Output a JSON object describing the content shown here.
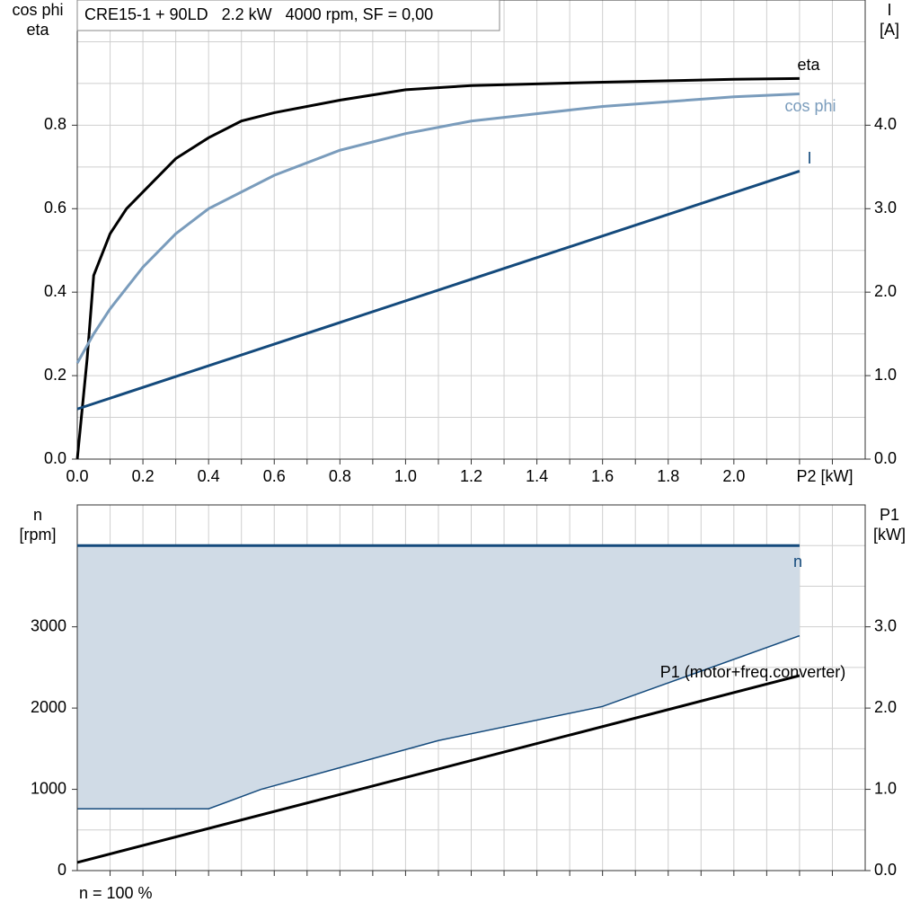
{
  "chart_data": [
    {
      "type": "line",
      "title": "CRE15-1 + 90LD   2.2 kW   4000 rpm, SF = 0,00",
      "ylabel": [
        "cos phi",
        "eta"
      ],
      "y2label": [
        "I",
        "[A]"
      ],
      "xlabel": "P2 [kW]",
      "xlim": [
        0,
        2.4
      ],
      "ylim": [
        0,
        1.1
      ],
      "y2lim": [
        0,
        5.5
      ],
      "xticks": [
        {
          "value": 0,
          "label": "0.0"
        },
        0.2,
        0.4,
        0.6,
        0.8,
        {
          "value": 1,
          "label": "1.0"
        },
        1.2,
        1.4,
        1.6,
        1.8,
        {
          "value": 2,
          "label": "2.0"
        }
      ],
      "yticks": [
        {
          "value": 0,
          "label": "0.0"
        },
        0.2,
        0.4,
        0.6,
        0.8
      ],
      "y2ticks": [
        {
          "value": 0,
          "label": "0.0"
        },
        {
          "value": 1,
          "label": "1.0"
        },
        {
          "value": 2,
          "label": "2.0"
        },
        {
          "value": 3,
          "label": "3.0"
        },
        {
          "value": 4,
          "label": "4.0"
        }
      ],
      "xgrid": [
        0.1,
        0.2,
        0.3,
        0.4,
        0.5,
        0.6,
        0.7,
        0.8,
        0.9,
        1.0,
        1.1,
        1.2,
        1.3,
        1.4,
        1.5,
        1.6,
        1.7,
        1.8,
        1.9,
        2.0,
        2.1,
        2.2,
        2.3
      ],
      "ygrid": [
        0.1,
        0.2,
        0.3,
        0.4,
        0.5,
        0.6,
        0.7,
        0.8,
        0.9,
        1.0
      ],
      "grid": true,
      "series": [
        {
          "name": "eta",
          "color": "#000000",
          "x": [
            0,
            0.03,
            0.05,
            0.1,
            0.15,
            0.2,
            0.3,
            0.4,
            0.5,
            0.6,
            0.8,
            1.0,
            1.2,
            1.6,
            2.0,
            2.2
          ],
          "values": [
            0,
            0.24,
            0.44,
            0.54,
            0.6,
            0.64,
            0.72,
            0.77,
            0.81,
            0.83,
            0.86,
            0.885,
            0.895,
            0.903,
            0.91,
            0.912
          ]
        },
        {
          "name": "cos phi",
          "color": "#7a9cbc",
          "x": [
            0,
            0.05,
            0.1,
            0.2,
            0.3,
            0.4,
            0.6,
            0.8,
            1.0,
            1.2,
            1.6,
            2.0,
            2.2
          ],
          "values": [
            0.23,
            0.3,
            0.36,
            0.46,
            0.54,
            0.6,
            0.68,
            0.74,
            0.78,
            0.81,
            0.845,
            0.868,
            0.875
          ]
        },
        {
          "name": "I",
          "color": "#144a7c",
          "axis": "y2",
          "x": [
            0,
            2.2
          ],
          "values": [
            0.6,
            3.45
          ]
        }
      ]
    },
    {
      "type": "line",
      "ylabel": [
        "n",
        "[rpm]"
      ],
      "y2label": [
        "P1",
        "[kW]"
      ],
      "footnote": "n = 100 %",
      "xlim": [
        0,
        2.4
      ],
      "ylim": [
        0,
        4500
      ],
      "y2lim": [
        0,
        4.5
      ],
      "yticks": [
        0,
        1000,
        2000,
        3000
      ],
      "y2ticks": [
        {
          "value": 0,
          "label": "0.0"
        },
        {
          "value": 1,
          "label": "1.0"
        },
        {
          "value": 2,
          "label": "2.0"
        },
        {
          "value": 3,
          "label": "3.0"
        }
      ],
      "xgrid": [
        0.1,
        0.2,
        0.3,
        0.4,
        0.5,
        0.6,
        0.7,
        0.8,
        0.9,
        1.0,
        1.1,
        1.2,
        1.3,
        1.4,
        1.5,
        1.6,
        1.7,
        1.8,
        1.9,
        2.0,
        2.1,
        2.2,
        2.3
      ],
      "ygrid": [
        500,
        1000,
        1500,
        2000,
        2500,
        3000,
        3500,
        4000
      ],
      "grid": true,
      "range": {
        "color": "#d0dbe6",
        "line_color": "#144a7c",
        "x": [
          0,
          0.4,
          0.56,
          1.1,
          1.6,
          2.2
        ],
        "lower": [
          760,
          760,
          1000,
          1600,
          2020,
          2890
        ],
        "upper": [
          4000,
          4000,
          4000,
          4000,
          4000,
          4000
        ]
      },
      "series": [
        {
          "name": "n",
          "color": "#144a7c",
          "x": [
            0,
            2.2
          ],
          "values": [
            4000,
            4000
          ]
        },
        {
          "name": "P1 (motor+freq.converter)",
          "color": "#000000",
          "axis": "y2",
          "x": [
            0,
            2.2
          ],
          "values": [
            0.1,
            2.4
          ]
        }
      ]
    }
  ]
}
